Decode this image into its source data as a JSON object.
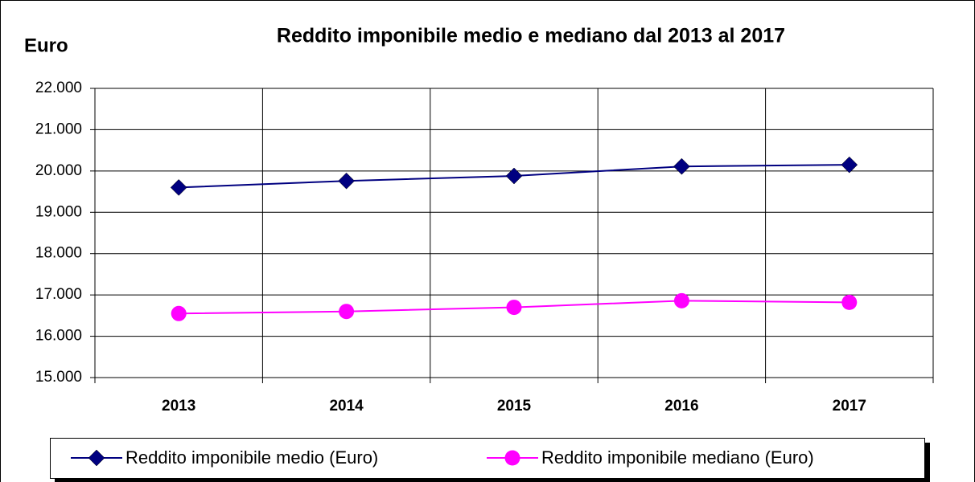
{
  "chart_data": {
    "type": "line",
    "title": "Reddito imponibile medio e mediano dal 2013 al 2017",
    "y_label": "Euro",
    "categories": [
      "2013",
      "2014",
      "2015",
      "2016",
      "2017"
    ],
    "series": [
      {
        "name": "Reddito imponibile medio (Euro)",
        "color": "#000080",
        "marker": "diamond",
        "values": [
          19600,
          19760,
          19880,
          20110,
          20150
        ]
      },
      {
        "name": "Reddito imponibile mediano (Euro)",
        "color": "#ff00ff",
        "marker": "circle",
        "values": [
          16550,
          16600,
          16700,
          16860,
          16820
        ]
      }
    ],
    "ylim": [
      15000,
      22000
    ],
    "yticks": [
      {
        "value": 15000,
        "label": "15.000"
      },
      {
        "value": 16000,
        "label": "16.000"
      },
      {
        "value": 17000,
        "label": "17.000"
      },
      {
        "value": 18000,
        "label": "18.000"
      },
      {
        "value": 19000,
        "label": "19.000"
      },
      {
        "value": 20000,
        "label": "20.000"
      },
      {
        "value": 21000,
        "label": "21.000"
      },
      {
        "value": 22000,
        "label": "22.000"
      }
    ],
    "grid": true
  }
}
